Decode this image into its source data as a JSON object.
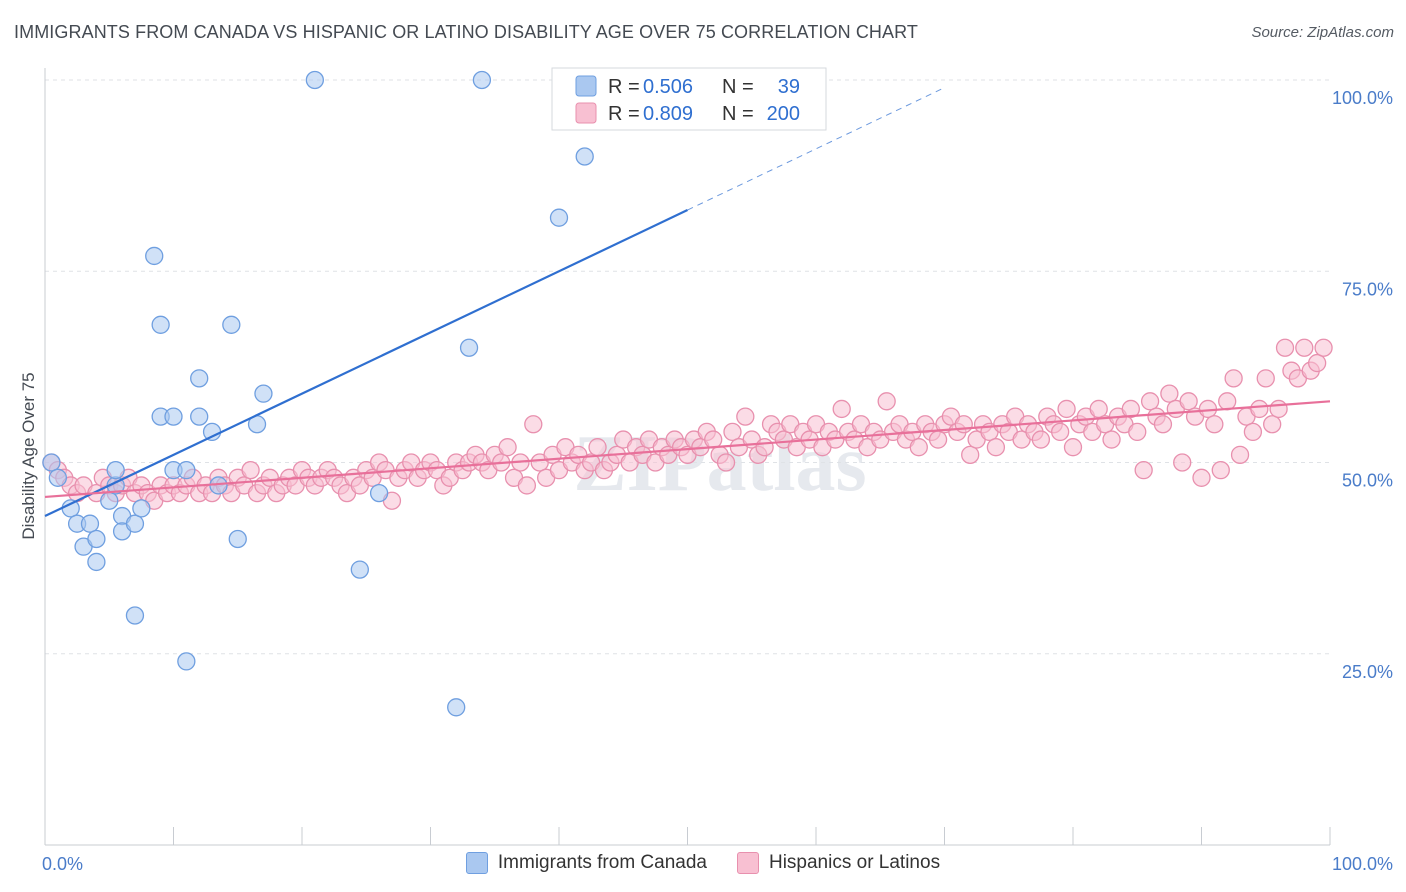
{
  "title": "IMMIGRANTS FROM CANADA VS HISPANIC OR LATINO DISABILITY AGE OVER 75 CORRELATION CHART",
  "source": "Source: ZipAtlas.com",
  "watermark": "ZIPatlas",
  "legend": {
    "rows": [
      {
        "r_label": "R =",
        "r_value": "0.506",
        "n_label": "N =",
        "n_value": "39"
      },
      {
        "r_label": "R =",
        "r_value": "0.809",
        "n_label": "N =",
        "n_value": "200"
      }
    ]
  },
  "bottom_legend": [
    {
      "label": "Immigrants from Canada",
      "color": "#aac8f0",
      "border": "#6f9fe0"
    },
    {
      "label": "Hispanics or Latinos",
      "color": "#f8c0d2",
      "border": "#e890ae"
    }
  ],
  "chart_data": {
    "type": "scatter",
    "xlabel": "",
    "ylabel": "Disability Age Over 75",
    "xlim": [
      0,
      100
    ],
    "ylim": [
      0,
      100
    ],
    "x_tick_labels": [
      {
        "value": 0,
        "label": "0.0%"
      },
      {
        "value": 100,
        "label": "100.0%"
      }
    ],
    "y_tick_labels": [
      {
        "value": 25,
        "label": "25.0%"
      },
      {
        "value": 50,
        "label": "50.0%"
      },
      {
        "value": 75,
        "label": "75.0%"
      },
      {
        "value": 100,
        "label": "100.0%"
      }
    ],
    "grid": "horizontal dashed",
    "series": [
      {
        "name": "Immigrants from Canada",
        "color": "#aac8f0",
        "stroke": "#6f9fe0",
        "trend_color": "#2f6fd0",
        "trend": {
          "x0": 0,
          "y0": 43,
          "x1": 50,
          "y1": 83,
          "dashed_to_x": 70
        },
        "points": [
          [
            0.5,
            50
          ],
          [
            1,
            48
          ],
          [
            2,
            44
          ],
          [
            2.5,
            42
          ],
          [
            3,
            39
          ],
          [
            3.5,
            42
          ],
          [
            4,
            40
          ],
          [
            4,
            37
          ],
          [
            5,
            45
          ],
          [
            5.5,
            47
          ],
          [
            5.5,
            49
          ],
          [
            6,
            43
          ],
          [
            6,
            41
          ],
          [
            7,
            30
          ],
          [
            7,
            42
          ],
          [
            7.5,
            44
          ],
          [
            8.5,
            77
          ],
          [
            9,
            56
          ],
          [
            9,
            68
          ],
          [
            10,
            56
          ],
          [
            10,
            49
          ],
          [
            11,
            24
          ],
          [
            11,
            49
          ],
          [
            12,
            61
          ],
          [
            12,
            56
          ],
          [
            13,
            54
          ],
          [
            13.5,
            47
          ],
          [
            14.5,
            68
          ],
          [
            15,
            40
          ],
          [
            16.5,
            55
          ],
          [
            17,
            59
          ],
          [
            21,
            100
          ],
          [
            24.5,
            36
          ],
          [
            26,
            46
          ],
          [
            32,
            18
          ],
          [
            33,
            65
          ],
          [
            34,
            100
          ],
          [
            40,
            82
          ],
          [
            42,
            90
          ]
        ]
      },
      {
        "name": "Hispanics or Latinos",
        "color": "#f8c0d2",
        "stroke": "#e890ae",
        "trend_color": "#e8709a",
        "trend": {
          "x0": 0,
          "y0": 45.5,
          "x1": 100,
          "y1": 58
        },
        "points": [
          [
            0.5,
            50
          ],
          [
            1,
            49
          ],
          [
            1.5,
            48
          ],
          [
            2,
            47
          ],
          [
            2.5,
            46
          ],
          [
            3,
            47
          ],
          [
            4,
            46
          ],
          [
            4.5,
            48
          ],
          [
            5,
            47
          ],
          [
            5.5,
            46
          ],
          [
            6,
            47
          ],
          [
            6.5,
            48
          ],
          [
            7,
            46
          ],
          [
            7.5,
            47
          ],
          [
            8,
            46
          ],
          [
            8.5,
            45
          ],
          [
            9,
            47
          ],
          [
            9.5,
            46
          ],
          [
            10,
            47
          ],
          [
            10.5,
            46
          ],
          [
            11,
            47
          ],
          [
            11.5,
            48
          ],
          [
            12,
            46
          ],
          [
            12.5,
            47
          ],
          [
            13,
            46
          ],
          [
            13.5,
            48
          ],
          [
            14,
            47
          ],
          [
            14.5,
            46
          ],
          [
            15,
            48
          ],
          [
            15.5,
            47
          ],
          [
            16,
            49
          ],
          [
            16.5,
            46
          ],
          [
            17,
            47
          ],
          [
            17.5,
            48
          ],
          [
            18,
            46
          ],
          [
            18.5,
            47
          ],
          [
            19,
            48
          ],
          [
            19.5,
            47
          ],
          [
            20,
            49
          ],
          [
            20.5,
            48
          ],
          [
            21,
            47
          ],
          [
            21.5,
            48
          ],
          [
            22,
            49
          ],
          [
            22.5,
            48
          ],
          [
            23,
            47
          ],
          [
            23.5,
            46
          ],
          [
            24,
            48
          ],
          [
            24.5,
            47
          ],
          [
            25,
            49
          ],
          [
            25.5,
            48
          ],
          [
            26,
            50
          ],
          [
            26.5,
            49
          ],
          [
            27,
            45
          ],
          [
            27.5,
            48
          ],
          [
            28,
            49
          ],
          [
            28.5,
            50
          ],
          [
            29,
            48
          ],
          [
            29.5,
            49
          ],
          [
            30,
            50
          ],
          [
            30.5,
            49
          ],
          [
            31,
            47
          ],
          [
            31.5,
            48
          ],
          [
            32,
            50
          ],
          [
            32.5,
            49
          ],
          [
            33,
            50
          ],
          [
            33.5,
            51
          ],
          [
            34,
            50
          ],
          [
            34.5,
            49
          ],
          [
            35,
            51
          ],
          [
            35.5,
            50
          ],
          [
            36,
            52
          ],
          [
            36.5,
            48
          ],
          [
            37,
            50
          ],
          [
            37.5,
            47
          ],
          [
            38,
            55
          ],
          [
            38.5,
            50
          ],
          [
            39,
            48
          ],
          [
            39.5,
            51
          ],
          [
            40,
            49
          ],
          [
            40.5,
            52
          ],
          [
            41,
            50
          ],
          [
            41.5,
            51
          ],
          [
            42,
            49
          ],
          [
            42.5,
            50
          ],
          [
            43,
            52
          ],
          [
            43.5,
            49
          ],
          [
            44,
            50
          ],
          [
            44.5,
            51
          ],
          [
            45,
            53
          ],
          [
            45.5,
            50
          ],
          [
            46,
            52
          ],
          [
            46.5,
            51
          ],
          [
            47,
            53
          ],
          [
            47.5,
            50
          ],
          [
            48,
            52
          ],
          [
            48.5,
            51
          ],
          [
            49,
            53
          ],
          [
            49.5,
            52
          ],
          [
            50,
            51
          ],
          [
            50.5,
            53
          ],
          [
            51,
            52
          ],
          [
            51.5,
            54
          ],
          [
            52,
            53
          ],
          [
            52.5,
            51
          ],
          [
            53,
            50
          ],
          [
            53.5,
            54
          ],
          [
            54,
            52
          ],
          [
            54.5,
            56
          ],
          [
            55,
            53
          ],
          [
            55.5,
            51
          ],
          [
            56,
            52
          ],
          [
            56.5,
            55
          ],
          [
            57,
            54
          ],
          [
            57.5,
            53
          ],
          [
            58,
            55
          ],
          [
            58.5,
            52
          ],
          [
            59,
            54
          ],
          [
            59.5,
            53
          ],
          [
            60,
            55
          ],
          [
            60.5,
            52
          ],
          [
            61,
            54
          ],
          [
            61.5,
            53
          ],
          [
            62,
            57
          ],
          [
            62.5,
            54
          ],
          [
            63,
            53
          ],
          [
            63.5,
            55
          ],
          [
            64,
            52
          ],
          [
            64.5,
            54
          ],
          [
            65,
            53
          ],
          [
            65.5,
            58
          ],
          [
            66,
            54
          ],
          [
            66.5,
            55
          ],
          [
            67,
            53
          ],
          [
            67.5,
            54
          ],
          [
            68,
            52
          ],
          [
            68.5,
            55
          ],
          [
            69,
            54
          ],
          [
            69.5,
            53
          ],
          [
            70,
            55
          ],
          [
            70.5,
            56
          ],
          [
            71,
            54
          ],
          [
            71.5,
            55
          ],
          [
            72,
            51
          ],
          [
            72.5,
            53
          ],
          [
            73,
            55
          ],
          [
            73.5,
            54
          ],
          [
            74,
            52
          ],
          [
            74.5,
            55
          ],
          [
            75,
            54
          ],
          [
            75.5,
            56
          ],
          [
            76,
            53
          ],
          [
            76.5,
            55
          ],
          [
            77,
            54
          ],
          [
            77.5,
            53
          ],
          [
            78,
            56
          ],
          [
            78.5,
            55
          ],
          [
            79,
            54
          ],
          [
            79.5,
            57
          ],
          [
            80,
            52
          ],
          [
            80.5,
            55
          ],
          [
            81,
            56
          ],
          [
            81.5,
            54
          ],
          [
            82,
            57
          ],
          [
            82.5,
            55
          ],
          [
            83,
            53
          ],
          [
            83.5,
            56
          ],
          [
            84,
            55
          ],
          [
            84.5,
            57
          ],
          [
            85,
            54
          ],
          [
            85.5,
            49
          ],
          [
            86,
            58
          ],
          [
            86.5,
            56
          ],
          [
            87,
            55
          ],
          [
            87.5,
            59
          ],
          [
            88,
            57
          ],
          [
            88.5,
            50
          ],
          [
            89,
            58
          ],
          [
            89.5,
            56
          ],
          [
            90,
            48
          ],
          [
            90.5,
            57
          ],
          [
            91,
            55
          ],
          [
            91.5,
            49
          ],
          [
            92,
            58
          ],
          [
            92.5,
            61
          ],
          [
            93,
            51
          ],
          [
            93.5,
            56
          ],
          [
            94,
            54
          ],
          [
            94.5,
            57
          ],
          [
            95,
            61
          ],
          [
            95.5,
            55
          ],
          [
            96,
            57
          ],
          [
            96.5,
            65
          ],
          [
            97,
            62
          ],
          [
            97.5,
            61
          ],
          [
            98,
            65
          ],
          [
            98.5,
            62
          ],
          [
            99,
            63
          ],
          [
            99.5,
            65
          ]
        ]
      }
    ]
  }
}
